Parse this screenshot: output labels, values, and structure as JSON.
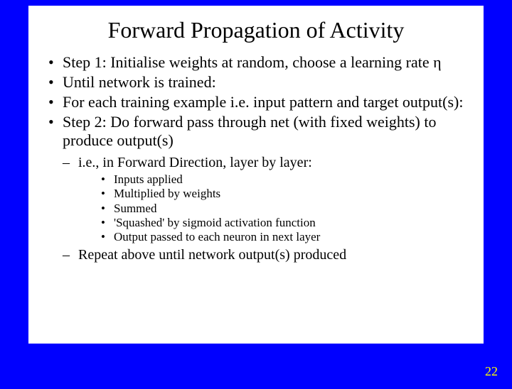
{
  "title": "Forward Propagation of Activity",
  "bullets": {
    "b1": "Step 1: Initialise weights at random, choose a learning rate η",
    "b2": "Until network is trained:",
    "b3": "For each training example i.e. input pattern and target output(s):",
    "b4": "Step 2: Do forward pass through net (with fixed weights) to produce output(s)"
  },
  "sub1": "i.e., in Forward Direction, layer by layer:",
  "subsub": {
    "s1": "Inputs applied",
    "s2": "Multiplied by weights",
    "s3": "Summed",
    "s4": "'Squashed' by sigmoid activation function",
    "s5": "Output passed to each neuron in next layer"
  },
  "sub2": "Repeat above until network output(s) produced",
  "pageNumber": "22",
  "colors": {
    "background": "#0000ff",
    "slide_bg": "#ffffff",
    "text": "#000000",
    "pagenum": "#ffff00"
  }
}
